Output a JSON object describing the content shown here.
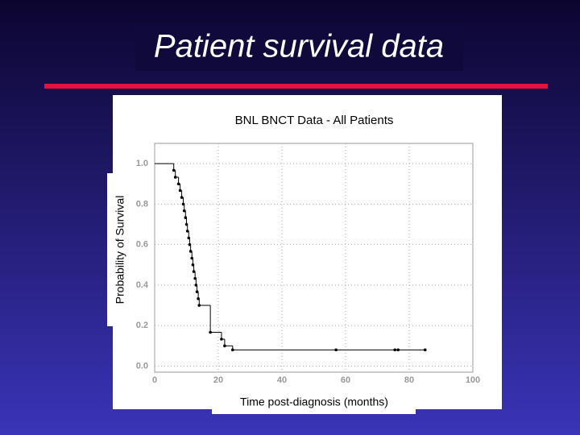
{
  "slide_title": "Patient survival data",
  "chart_data": {
    "type": "step",
    "title": "BNL BNCT Data - All Patients",
    "x_label": "Time post-diagnosis (months)",
    "y_label": "Probability of Survival",
    "x": [
      0,
      6,
      6.5,
      7.5,
      8,
      8.5,
      9,
      9.3,
      9.7,
      10,
      10.3,
      10.7,
      11,
      11.3,
      11.7,
      12,
      12.3,
      12.7,
      13,
      13.3,
      13.7,
      14,
      17.5,
      21,
      22,
      24.5,
      57,
      75.5,
      76.5,
      85
    ],
    "values": [
      1.0,
      0.967,
      0.933,
      0.9,
      0.867,
      0.833,
      0.8,
      0.767,
      0.733,
      0.7,
      0.667,
      0.633,
      0.6,
      0.567,
      0.533,
      0.5,
      0.467,
      0.433,
      0.4,
      0.367,
      0.333,
      0.3,
      0.167,
      0.133,
      0.1,
      0.08,
      0.08,
      0.08,
      0.08,
      0.08
    ],
    "color": "#000000",
    "xlim": [
      0,
      100
    ],
    "xticks": [
      0,
      20,
      40,
      60,
      80,
      100
    ],
    "ylim": [
      -0.03,
      1.1
    ],
    "yticks": [
      {
        "value": 0,
        "label": "0.0"
      },
      {
        "value": 0.2,
        "label": "0.2"
      },
      {
        "value": 0.4,
        "label": "0.4"
      },
      {
        "value": 0.6,
        "label": "0.6"
      },
      {
        "value": 0.8,
        "label": "0.8"
      },
      {
        "value": 1.0,
        "label": "1.0"
      }
    ],
    "grid": true
  }
}
